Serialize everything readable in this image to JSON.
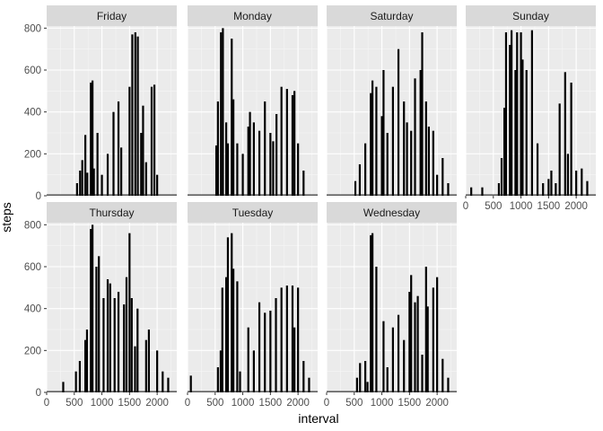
{
  "chart_data": {
    "type": "bar",
    "xlabel": "interval",
    "ylabel": "steps",
    "xlim": [
      0,
      2355
    ],
    "ylim": [
      0,
      810
    ],
    "x_ticks": [
      0,
      500,
      1000,
      1500,
      2000
    ],
    "x_tick_labels": [
      "0",
      "500",
      "1000",
      "1500",
      "2000"
    ],
    "y_ticks": [
      0,
      200,
      400,
      600,
      800
    ],
    "y_tick_labels": [
      "0",
      "200",
      "400",
      "600",
      "800"
    ],
    "grid": true,
    "facets": [
      {
        "name": "Friday",
        "x": [
          550,
          605,
          645,
          700,
          735,
          800,
          830,
          855,
          920,
          1000,
          1105,
          1210,
          1300,
          1350,
          1500,
          1550,
          1605,
          1650,
          1710,
          1745,
          1800,
          1900,
          1950,
          2000
        ],
        "values": [
          60,
          120,
          170,
          290,
          110,
          540,
          550,
          130,
          300,
          100,
          200,
          400,
          450,
          230,
          520,
          770,
          780,
          760,
          300,
          430,
          160,
          520,
          530,
          100
        ]
      },
      {
        "name": "Monday",
        "x": [
          520,
          550,
          605,
          640,
          700,
          730,
          800,
          830,
          900,
          1000,
          1100,
          1130,
          1200,
          1300,
          1400,
          1500,
          1550,
          1610,
          1700,
          1800,
          1900,
          1935,
          2000,
          2100
        ],
        "values": [
          240,
          450,
          780,
          800,
          350,
          250,
          750,
          460,
          250,
          200,
          330,
          400,
          350,
          310,
          450,
          300,
          260,
          390,
          520,
          510,
          480,
          500,
          250,
          120
        ]
      },
      {
        "name": "Saturday",
        "x": [
          520,
          600,
          700,
          800,
          830,
          900,
          1000,
          1030,
          1100,
          1200,
          1300,
          1400,
          1455,
          1530,
          1600,
          1700,
          1730,
          1800,
          1850,
          1930,
          2000,
          2100,
          2200
        ],
        "values": [
          70,
          150,
          250,
          490,
          550,
          520,
          380,
          600,
          300,
          520,
          700,
          450,
          350,
          310,
          560,
          600,
          780,
          450,
          330,
          310,
          100,
          180,
          60
        ]
      },
      {
        "name": "Sunday",
        "x": [
          100,
          300,
          600,
          650,
          700,
          730,
          800,
          830,
          900,
          930,
          1000,
          1030,
          1100,
          1200,
          1300,
          1400,
          1500,
          1550,
          1630,
          1700,
          1800,
          1850,
          1910,
          2000,
          2100,
          2200
        ],
        "values": [
          40,
          40,
          60,
          180,
          420,
          780,
          720,
          790,
          600,
          780,
          780,
          650,
          600,
          790,
          250,
          60,
          80,
          120,
          60,
          440,
          590,
          200,
          540,
          120,
          130,
          70
        ]
      },
      {
        "name": "Thursday",
        "x": [
          300,
          530,
          600,
          700,
          730,
          800,
          830,
          900,
          945,
          1030,
          1105,
          1150,
          1230,
          1300,
          1400,
          1445,
          1500,
          1540,
          1600,
          1645,
          1800,
          1850,
          2000,
          2100,
          2200
        ],
        "values": [
          50,
          100,
          150,
          250,
          300,
          780,
          800,
          600,
          650,
          450,
          540,
          520,
          450,
          480,
          420,
          550,
          760,
          450,
          220,
          400,
          250,
          300,
          200,
          100,
          70
        ]
      },
      {
        "name": "Tuesday",
        "x": [
          60,
          550,
          600,
          630,
          700,
          730,
          800,
          830,
          900,
          950,
          1100,
          1200,
          1300,
          1400,
          1500,
          1600,
          1700,
          1800,
          1900,
          1935,
          2000,
          2100,
          2200
        ],
        "values": [
          80,
          120,
          200,
          500,
          550,
          740,
          760,
          590,
          530,
          100,
          310,
          200,
          430,
          380,
          390,
          450,
          500,
          510,
          510,
          310,
          500,
          150,
          70
        ]
      },
      {
        "name": "Wednesday",
        "x": [
          550,
          605,
          700,
          740,
          800,
          830,
          900,
          1030,
          1100,
          1200,
          1300,
          1400,
          1500,
          1530,
          1600,
          1650,
          1730,
          1800,
          1830,
          1930,
          2000,
          2100,
          2200
        ],
        "values": [
          70,
          140,
          150,
          50,
          750,
          760,
          600,
          340,
          120,
          310,
          370,
          250,
          480,
          560,
          430,
          460,
          180,
          600,
          410,
          500,
          550,
          160,
          70
        ]
      }
    ]
  },
  "colors": {
    "panel_background": "#ebebeb",
    "strip_background": "#d9d9d9",
    "grid_major": "#ffffff",
    "grid_minor": "#f5f5f5",
    "bars": "#000000",
    "tick_text": "#4d4d4d",
    "strip_text": "#1a1a1a"
  }
}
